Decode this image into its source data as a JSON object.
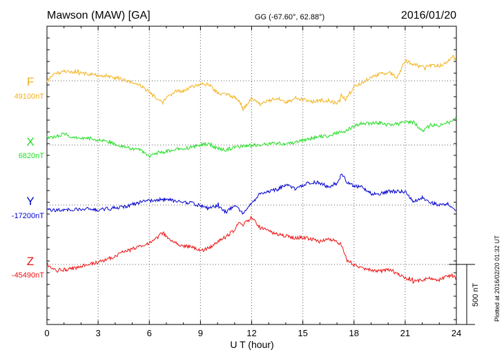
{
  "header": {
    "station": "Mawson (MAW)  [GA]",
    "coords": "GG (-67.60°,  62.88°)",
    "date": "2016/01/20"
  },
  "footer": {
    "plotted": "Plotted at 2016/02/20 01:32 UT"
  },
  "chart_data": {
    "type": "line",
    "xlabel": "U T (hour)",
    "xlim": [
      0,
      24
    ],
    "xticks": [
      "0",
      "3",
      "6",
      "9",
      "12",
      "15",
      "18",
      "21",
      "24"
    ],
    "grid": true,
    "scale_bar": {
      "label": "500 nT",
      "value_nT": 500
    },
    "series": [
      {
        "name": "F",
        "baseline": "49100nT",
        "baseline_nT": 49100,
        "color": "#f2b21b",
        "x": [
          0,
          0.5,
          1,
          1.5,
          2,
          2.5,
          3,
          3.5,
          4,
          4.5,
          5,
          5.5,
          6,
          6.5,
          6.8,
          7,
          7.5,
          8,
          8.5,
          9,
          9.5,
          10,
          10.5,
          11,
          11.3,
          11.5,
          12,
          12.5,
          13,
          13.5,
          14,
          14.5,
          15,
          15.5,
          16,
          16.5,
          17,
          17.3,
          17.5,
          18,
          18.5,
          19,
          19.5,
          20,
          20.3,
          20.5,
          21,
          21.5,
          22,
          22.5,
          23,
          23.5,
          23.8,
          24
        ],
        "values": [
          49100,
          49160,
          49180,
          49175,
          49160,
          49155,
          49145,
          49140,
          49120,
          49110,
          49085,
          49060,
          49000,
          48950,
          48920,
          48950,
          49010,
          49020,
          49050,
          49070,
          49070,
          49000,
          48985,
          48960,
          48930,
          48860,
          48950,
          48905,
          48935,
          48955,
          48925,
          48945,
          48945,
          48925,
          48935,
          48935,
          48915,
          48975,
          48945,
          49045,
          49085,
          49130,
          49155,
          49170,
          49150,
          49120,
          49270,
          49235,
          49215,
          49225,
          49225,
          49255,
          49315,
          49265
        ]
      },
      {
        "name": "X",
        "baseline": "6820nT",
        "baseline_nT": 6820,
        "color": "#22dd22",
        "x": [
          0,
          0.5,
          1,
          1.5,
          2,
          2.5,
          3,
          3.5,
          4,
          4.5,
          5,
          5.5,
          6,
          6.5,
          7,
          7.5,
          8,
          8.5,
          9,
          9.5,
          10,
          10.5,
          11,
          11.5,
          12,
          12.5,
          13,
          13.5,
          14,
          14.5,
          15,
          15.5,
          16,
          16.5,
          17,
          17.5,
          18,
          18.5,
          19,
          19.5,
          20,
          20.5,
          21,
          21.5,
          22,
          22.5,
          23,
          23.5,
          24
        ],
        "values": [
          6880,
          6885,
          6915,
          6880,
          6880,
          6875,
          6860,
          6850,
          6825,
          6805,
          6785,
          6775,
          6725,
          6755,
          6765,
          6785,
          6790,
          6800,
          6825,
          6830,
          6790,
          6780,
          6800,
          6810,
          6815,
          6820,
          6830,
          6835,
          6830,
          6835,
          6860,
          6875,
          6890,
          6895,
          6920,
          6935,
          6980,
          7000,
          7000,
          7005,
          6985,
          7005,
          7010,
          7010,
          6935,
          6985,
          6980,
          7010,
          7040
        ]
      },
      {
        "name": "Y",
        "baseline": "-17200nT",
        "baseline_nT": -17200,
        "color": "#0000cc",
        "x": [
          0,
          0.5,
          1,
          1.5,
          2,
          2.5,
          3,
          3.5,
          4,
          4.5,
          5,
          5.5,
          6,
          6.5,
          7,
          7.5,
          8,
          8.5,
          9,
          9.5,
          10,
          10.5,
          11,
          11.5,
          12,
          12.5,
          13,
          13.5,
          14,
          14.5,
          15,
          15.5,
          16,
          16.5,
          17,
          17.3,
          17.6,
          18,
          18.5,
          19,
          19.5,
          20,
          20.5,
          21,
          21.5,
          22,
          22.5,
          23,
          23.5,
          24
        ],
        "values": [
          -17235,
          -17245,
          -17240,
          -17240,
          -17235,
          -17225,
          -17240,
          -17230,
          -17225,
          -17215,
          -17195,
          -17175,
          -17165,
          -17155,
          -17150,
          -17165,
          -17175,
          -17185,
          -17205,
          -17225,
          -17205,
          -17260,
          -17205,
          -17270,
          -17185,
          -17105,
          -17085,
          -17070,
          -17030,
          -17065,
          -17035,
          -17010,
          -17015,
          -17050,
          -17015,
          -16940,
          -17010,
          -17045,
          -17050,
          -17105,
          -17105,
          -17085,
          -17085,
          -17090,
          -17175,
          -17140,
          -17180,
          -17200,
          -17190,
          -17245
        ]
      },
      {
        "name": "Z",
        "baseline": "-45490nT",
        "baseline_nT": -45490,
        "color": "#ee1111",
        "x": [
          0,
          0.5,
          1,
          1.5,
          2,
          2.5,
          3,
          3.5,
          4,
          4.5,
          5,
          5.5,
          6,
          6.5,
          6.8,
          7,
          7.5,
          8,
          8.5,
          9,
          9.5,
          10,
          10.5,
          11,
          11.3,
          11.5,
          12,
          12.5,
          13,
          13.5,
          14,
          14.5,
          15,
          15.5,
          16,
          16.5,
          17,
          17.3,
          17.6,
          18,
          18.5,
          19,
          19.5,
          20,
          20.5,
          21,
          21.5,
          22,
          22.5,
          23,
          23.5,
          24
        ],
        "values": [
          -45490,
          -45545,
          -45535,
          -45525,
          -45505,
          -45490,
          -45470,
          -45450,
          -45420,
          -45385,
          -45365,
          -45335,
          -45310,
          -45260,
          -45225,
          -45255,
          -45310,
          -45335,
          -45345,
          -45375,
          -45355,
          -45300,
          -45260,
          -45200,
          -45140,
          -45160,
          -45100,
          -45185,
          -45210,
          -45240,
          -45250,
          -45270,
          -45265,
          -45280,
          -45300,
          -45280,
          -45300,
          -45330,
          -45460,
          -45490,
          -45520,
          -45535,
          -45550,
          -45530,
          -45565,
          -45600,
          -45635,
          -45620,
          -45605,
          -45620,
          -45585,
          -45600
        ]
      }
    ]
  }
}
